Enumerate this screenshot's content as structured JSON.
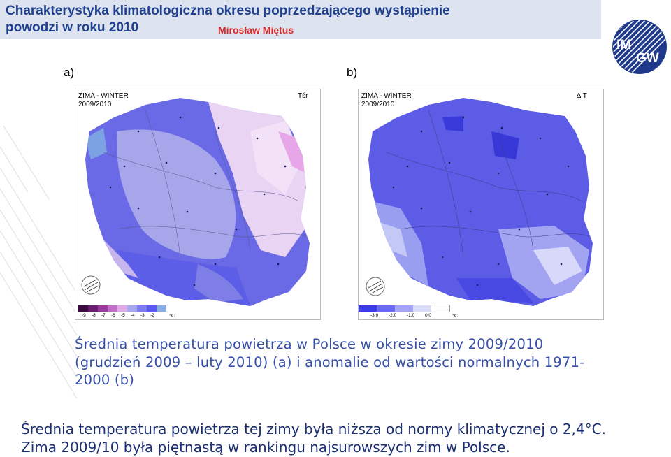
{
  "header": {
    "title_line1": "Charakterystyka klimatologiczna okresu poprzedzającego wystąpienie",
    "title_line2": "powodzi w roku 2010",
    "author": "Mirosław Miętus",
    "logo_text_top": "IM",
    "logo_text_bottom": "GW"
  },
  "panels": {
    "a": {
      "label": "a)",
      "heading_line1": "ZIMA - WINTER",
      "heading_line2": "2009/2010",
      "corner": "Tśr",
      "legend_ticks": [
        "-9",
        "-8",
        "-7",
        "-6",
        "-5",
        "-4",
        "-3",
        "-2"
      ],
      "legend_unit": "°C",
      "legend_colors": [
        "#3b0b3f",
        "#6b1d72",
        "#9a3aa0",
        "#c06ec8",
        "#dea8e6",
        "#a7a6f0",
        "#7c7cf0",
        "#5a5af5",
        "#88aee8"
      ]
    },
    "b": {
      "label": "b)",
      "heading_line1": "ZIMA - WINTER",
      "heading_line2": "2009/2010",
      "corner": "∆ T",
      "legend_ticks": [
        "-3.0",
        "-2.0",
        "-1.0",
        "0.0"
      ],
      "legend_unit": "°C",
      "legend_colors": [
        "#3a3ae8",
        "#6a6af2",
        "#a4a4f6",
        "#dcdcfb",
        "#ffffff"
      ]
    }
  },
  "caption": "Średnia temperatura powietrza w Polsce w okresie zimy 2009/2010 (grudzień 2009 – luty 2010) (a) i anomalie od wartości normalnych 1971-2000 (b)",
  "summary_line1": "Średnia temperatura powietrza tej zimy była niższa od normy klimatycznej o 2,4°C.",
  "summary_line2": "Zima 2009/10 była piętnastą w rankingu najsurowszych zim w Polsce."
}
